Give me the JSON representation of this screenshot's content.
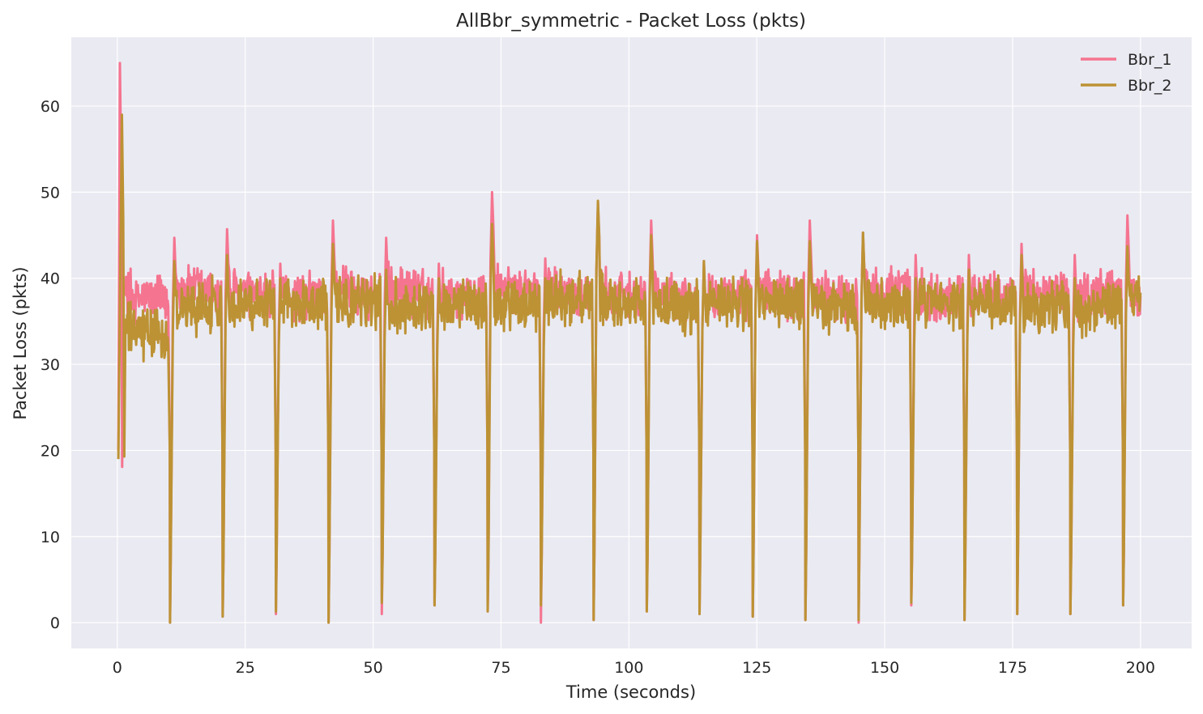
{
  "chart_data": {
    "type": "line",
    "title": "AllBbr_symmetric - Packet Loss (pkts)",
    "xlabel": "Time (seconds)",
    "ylabel": "Packet Loss (pkts)",
    "xlim": [
      -9,
      210
    ],
    "ylim": [
      -3,
      68
    ],
    "xticks": [
      0,
      25,
      50,
      75,
      100,
      125,
      150,
      175,
      200
    ],
    "yticks": [
      0,
      10,
      20,
      30,
      40,
      50,
      60
    ],
    "grid": true,
    "legend_position": "top-right",
    "dip_times": [
      10.3,
      20.6,
      31.0,
      41.3,
      51.7,
      62.0,
      72.4,
      82.8,
      93.1,
      103.5,
      113.8,
      124.2,
      134.5,
      144.9,
      155.2,
      165.6,
      175.9,
      186.3,
      196.6
    ],
    "series": [
      {
        "name": "Bbr_1",
        "color": "#f57490",
        "start": {
          "x": 0.2,
          "y": 20
        },
        "end": 200,
        "first_peak": {
          "x": 0.5,
          "y": 65
        },
        "dip_min_values": [
          0,
          0.7,
          1.0,
          0,
          1.0,
          2.0,
          1.3,
          0,
          0.3,
          1.3,
          1.0,
          0.7,
          0.3,
          0,
          2.0,
          0.3,
          1.0,
          1.0,
          2.0
        ],
        "post_dip_peaks": [
          44.7,
          45.7,
          41.7,
          46.7,
          44.7,
          41.7,
          50.0,
          42.3,
          48.7,
          46.7,
          42.0,
          45.0,
          46.7,
          45.3,
          42.7,
          42.7,
          44.0,
          42.7,
          47.3
        ],
        "segment_levels": [
          [
            38,
            37
          ],
          [
            39.2,
            38
          ],
          [
            38.5,
            38
          ],
          [
            38,
            37.5
          ],
          [
            39,
            38
          ],
          [
            38.7,
            38
          ],
          [
            38.5,
            38
          ],
          [
            39,
            38.5
          ],
          [
            38.5,
            38
          ],
          [
            38.3,
            38
          ],
          [
            38,
            37.5
          ],
          [
            38.5,
            38
          ],
          [
            38.5,
            38
          ],
          [
            38.2,
            37.5
          ],
          [
            38.8,
            38.5
          ],
          [
            38,
            37.5
          ],
          [
            38.5,
            38
          ],
          [
            38.5,
            38
          ],
          [
            38,
            38.5
          ],
          [
            38.5,
            38
          ]
        ],
        "noise_amplitude": 2.4
      },
      {
        "name": "Bbr_2",
        "color": "#bc9234",
        "start": {
          "x": 0.2,
          "y": 19
        },
        "end": 200,
        "first_peak": {
          "x": 0.9,
          "y": 59
        },
        "dip_min_values": [
          0,
          0.7,
          1.3,
          0,
          2.3,
          2.0,
          1.3,
          2.0,
          0.3,
          1.3,
          1.0,
          0.7,
          0.3,
          0.3,
          2.3,
          0.3,
          1.0,
          1.0,
          2.0
        ],
        "post_dip_peaks": [
          42.0,
          42.7,
          40.0,
          44.0,
          41.0,
          40.0,
          46.3,
          40.0,
          49.0,
          45.0,
          42.0,
          44.3,
          44.3,
          45.3,
          40.0,
          41.0,
          42.7,
          40.0,
          43.7
        ],
        "segment_levels": [
          [
            34,
            33
          ],
          [
            36.5,
            37
          ],
          [
            37,
            37.5
          ],
          [
            37.5,
            37
          ],
          [
            37,
            37.5
          ],
          [
            36.5,
            37
          ],
          [
            37,
            36.5
          ],
          [
            36.5,
            37
          ],
          [
            37.5,
            37.5
          ],
          [
            37.5,
            37
          ],
          [
            37,
            36.5
          ],
          [
            37,
            37
          ],
          [
            37,
            37
          ],
          [
            37,
            36.5
          ],
          [
            36.5,
            37
          ],
          [
            37,
            37
          ],
          [
            36.5,
            37
          ],
          [
            36,
            37
          ],
          [
            36,
            37
          ],
          [
            37,
            37
          ]
        ],
        "noise_amplitude": 2.6
      }
    ]
  }
}
